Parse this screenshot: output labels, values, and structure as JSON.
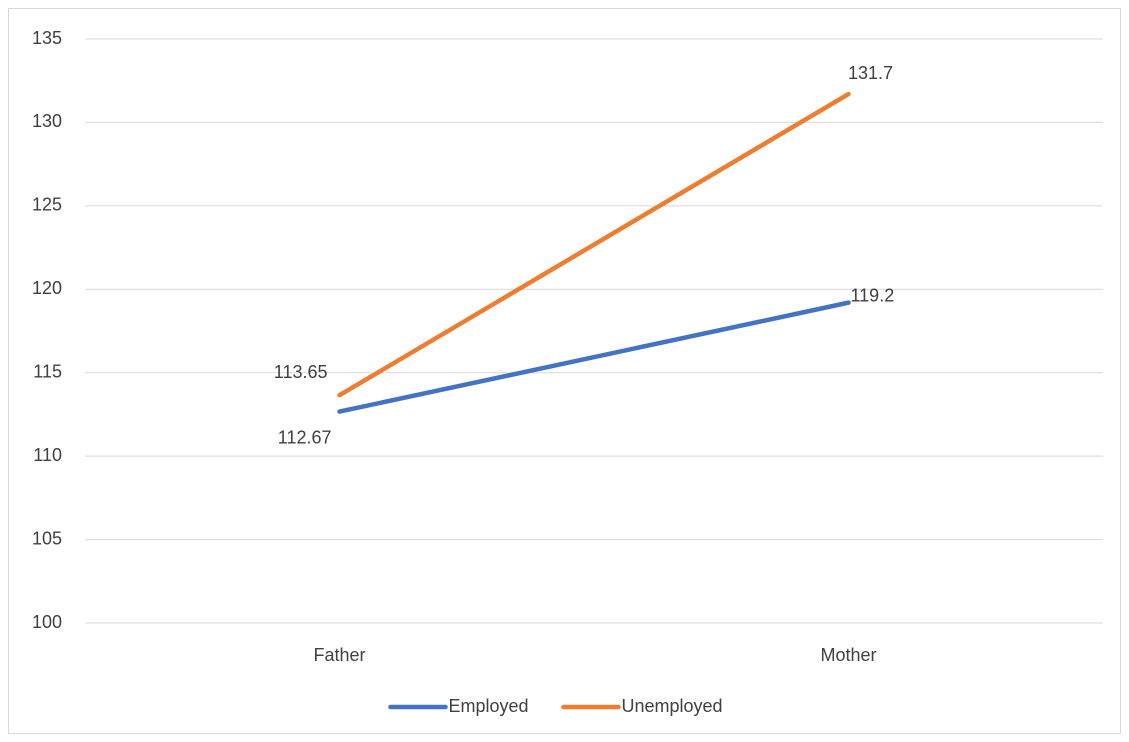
{
  "chart_data": {
    "type": "line",
    "categories": [
      "Father",
      "Mother"
    ],
    "series": [
      {
        "name": "Employed",
        "color": "#4472c4",
        "values": [
          112.67,
          119.2
        ]
      },
      {
        "name": "Unemployed",
        "color": "#ed7d31",
        "values": [
          113.65,
          131.7
        ]
      }
    ],
    "ylim": [
      100,
      135
    ],
    "yticks": [
      100,
      105,
      110,
      115,
      120,
      125,
      130,
      135
    ],
    "grid": true,
    "legend": "bottom"
  }
}
